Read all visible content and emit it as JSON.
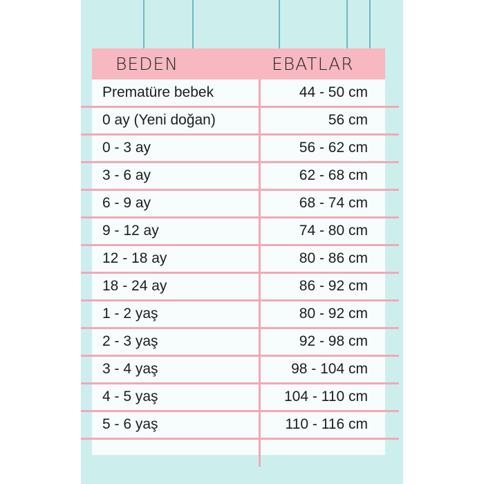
{
  "header": {
    "size": "BEDEN",
    "measurement": "EBATLAR"
  },
  "colors": {
    "background": "#ccefed",
    "header": "#f7b8c1",
    "lines": "#f4a7b6"
  },
  "rows": [
    {
      "size": "Prematüre bebek",
      "measurement": "44 - 50 cm"
    },
    {
      "size": "0 ay (Yeni doğan)",
      "measurement": "56 cm"
    },
    {
      "size": "0 - 3 ay",
      "measurement": "56 - 62 cm"
    },
    {
      "size": "3 - 6 ay",
      "measurement": "62 - 68 cm"
    },
    {
      "size": "6 - 9 ay",
      "measurement": "68 - 74 cm"
    },
    {
      "size": "9 - 12 ay",
      "measurement": "74 - 80 cm"
    },
    {
      "size": "12 - 18 ay",
      "measurement": "80 - 86 cm"
    },
    {
      "size": "18 - 24 ay",
      "measurement": "86 - 92 cm"
    },
    {
      "size": "1 - 2 yaş",
      "measurement": "80 - 92 cm"
    },
    {
      "size": "2 - 3 yaş",
      "measurement": "92 - 98 cm"
    },
    {
      "size": "3 - 4 yaş",
      "measurement": "98 - 104 cm"
    },
    {
      "size": "4 - 5 yaş",
      "measurement": "104 - 110 cm"
    },
    {
      "size": "5 - 6 yaş",
      "measurement": "110 - 116 cm"
    }
  ]
}
